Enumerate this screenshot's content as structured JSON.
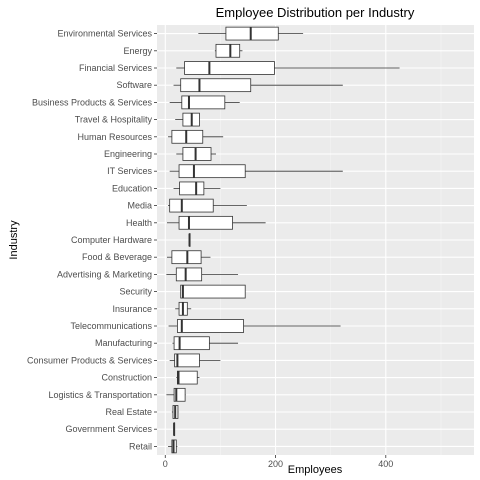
{
  "chart_data": {
    "type": "boxplot",
    "orientation": "horizontal",
    "title": "Employee Distribution per Industry",
    "xlabel": "Employees",
    "ylabel": "Industry",
    "xlim": [
      -15,
      560
    ],
    "x_ticks": [
      0,
      200,
      400
    ],
    "grid": true,
    "panel_background": "#ebebeb",
    "grid_color": "#ffffff",
    "box_fill": "#ffffff",
    "box_stroke": "#333333",
    "categories": [
      {
        "name": "Environmental Services",
        "whisker_low": 60,
        "q1": 110,
        "median": 155,
        "q3": 205,
        "whisker_high": 250
      },
      {
        "name": "Energy",
        "whisker_low": 90,
        "q1": 92,
        "median": 118,
        "q3": 135,
        "whisker_high": 140
      },
      {
        "name": "Financial Services",
        "whisker_low": 20,
        "q1": 35,
        "median": 80,
        "q3": 198,
        "whisker_high": 425
      },
      {
        "name": "Software",
        "whisker_low": 15,
        "q1": 28,
        "median": 62,
        "q3": 155,
        "whisker_high": 322
      },
      {
        "name": "Business Products & Services",
        "whisker_low": 8,
        "q1": 30,
        "median": 43,
        "q3": 108,
        "whisker_high": 135
      },
      {
        "name": "Travel & Hospitality",
        "whisker_low": 18,
        "q1": 32,
        "median": 48,
        "q3": 62,
        "whisker_high": 62
      },
      {
        "name": "Human Resources",
        "whisker_low": 5,
        "q1": 12,
        "median": 38,
        "q3": 68,
        "whisker_high": 105
      },
      {
        "name": "Engineering",
        "whisker_low": 20,
        "q1": 32,
        "median": 55,
        "q3": 83,
        "whisker_high": 92
      },
      {
        "name": "IT Services",
        "whisker_low": 8,
        "q1": 25,
        "median": 52,
        "q3": 145,
        "whisker_high": 322
      },
      {
        "name": "Education",
        "whisker_low": 15,
        "q1": 26,
        "median": 56,
        "q3": 70,
        "whisker_high": 100
      },
      {
        "name": "Media",
        "whisker_low": 5,
        "q1": 8,
        "median": 30,
        "q3": 87,
        "whisker_high": 148
      },
      {
        "name": "Health",
        "whisker_low": 3,
        "q1": 25,
        "median": 43,
        "q3": 122,
        "whisker_high": 182
      },
      {
        "name": "Computer Hardware",
        "whisker_low": 43,
        "q1": 44,
        "median": 44,
        "q3": 44,
        "whisker_high": 45
      },
      {
        "name": "Food & Beverage",
        "whisker_low": 3,
        "q1": 12,
        "median": 40,
        "q3": 65,
        "whisker_high": 82
      },
      {
        "name": "Advertising & Marketing",
        "whisker_low": 2,
        "q1": 20,
        "median": 37,
        "q3": 66,
        "whisker_high": 132
      },
      {
        "name": "Security",
        "whisker_low": 28,
        "q1": 28,
        "median": 32,
        "q3": 145,
        "whisker_high": 145
      },
      {
        "name": "Insurance",
        "whisker_low": 18,
        "q1": 25,
        "median": 32,
        "q3": 40,
        "whisker_high": 47
      },
      {
        "name": "Telecommunications",
        "whisker_low": 6,
        "q1": 22,
        "median": 30,
        "q3": 142,
        "whisker_high": 318
      },
      {
        "name": "Manufacturing",
        "whisker_low": 13,
        "q1": 16,
        "median": 26,
        "q3": 80,
        "whisker_high": 132
      },
      {
        "name": "Consumer Products & Services",
        "whisker_low": 8,
        "q1": 17,
        "median": 22,
        "q3": 62,
        "whisker_high": 100
      },
      {
        "name": "Construction",
        "whisker_low": 20,
        "q1": 22,
        "median": 24,
        "q3": 58,
        "whisker_high": 62
      },
      {
        "name": "Logistics & Transportation",
        "whisker_low": 2,
        "q1": 16,
        "median": 20,
        "q3": 36,
        "whisker_high": 37
      },
      {
        "name": "Real Estate",
        "whisker_low": 12,
        "q1": 14,
        "median": 18,
        "q3": 23,
        "whisker_high": 24
      },
      {
        "name": "Government Services",
        "whisker_low": 15,
        "q1": 16,
        "median": 16,
        "q3": 17,
        "whisker_high": 17
      },
      {
        "name": "Retail",
        "whisker_low": 5,
        "q1": 12,
        "median": 15,
        "q3": 20,
        "whisker_high": 22
      }
    ]
  }
}
